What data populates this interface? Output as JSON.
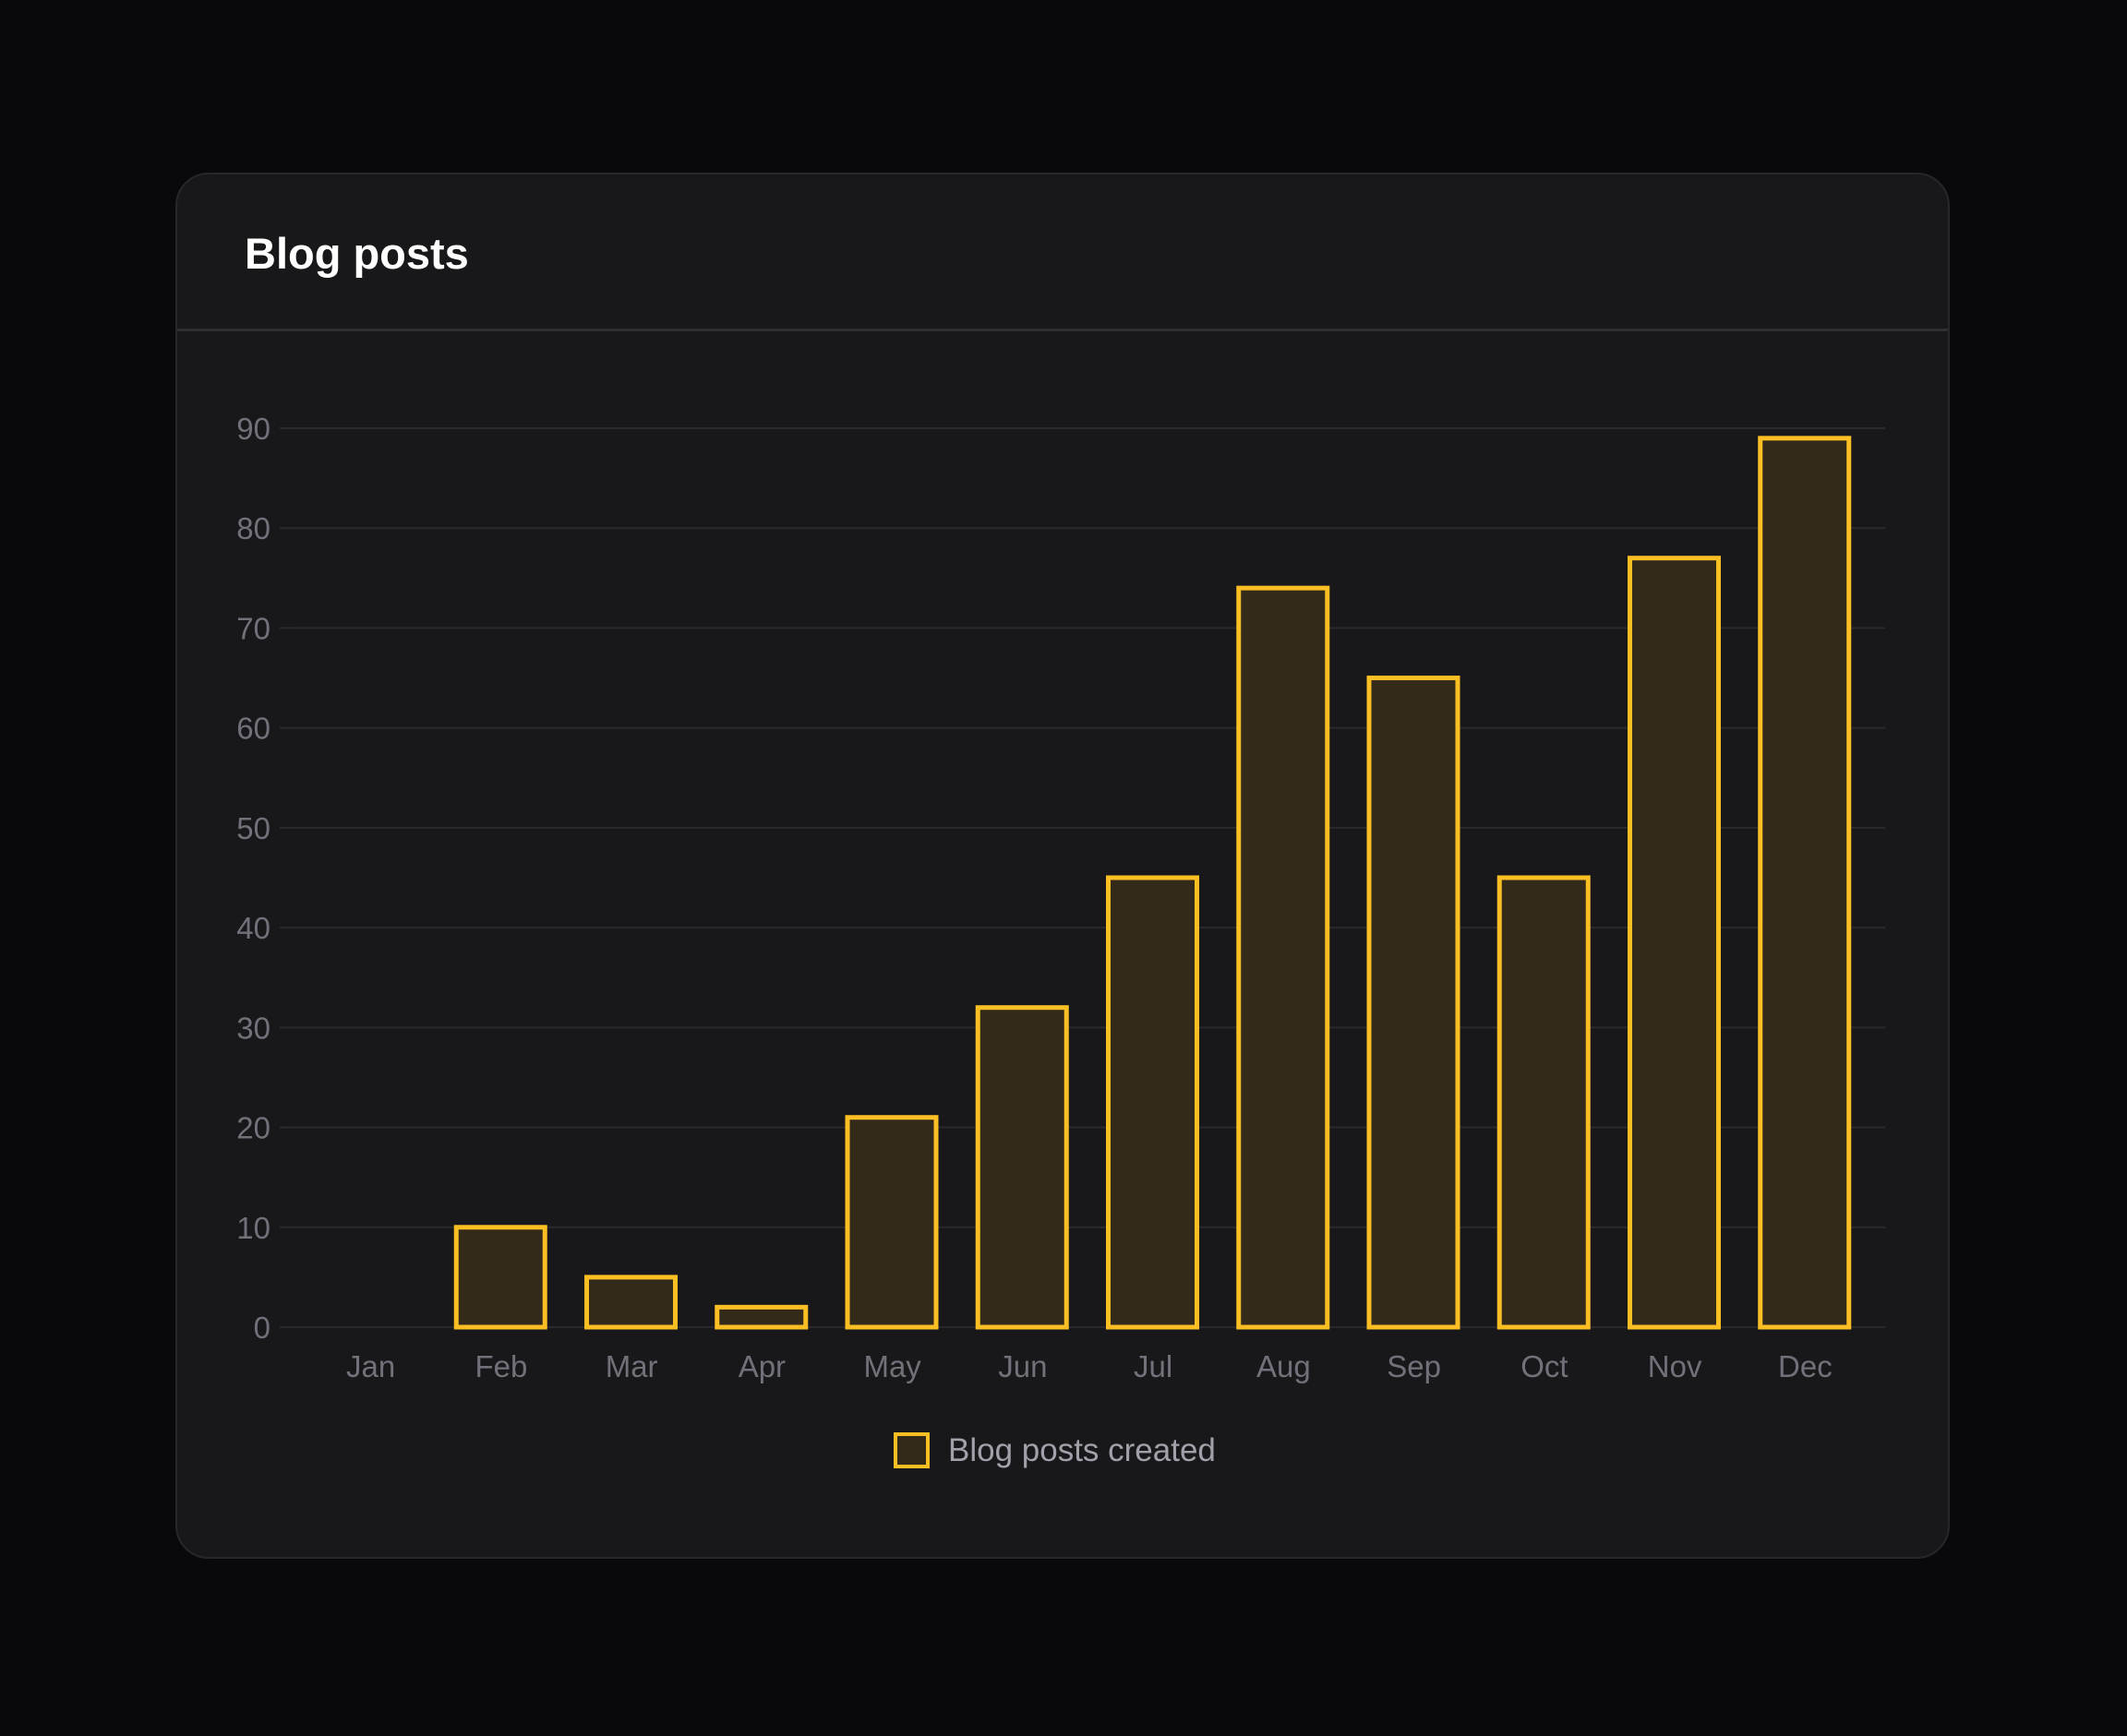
{
  "card": {
    "title": "Blog posts"
  },
  "colors": {
    "page_background": "#09090b",
    "card_background": "#18181b",
    "bar_stroke": "#fbbf24",
    "bar_fill": "#332a1a",
    "grid": "#2a2a2e",
    "tick_text": "#71717a",
    "legend_text": "#a1a1aa"
  },
  "chart_data": {
    "type": "bar",
    "title": "",
    "xlabel": "",
    "ylabel": "",
    "categories": [
      "Jan",
      "Feb",
      "Mar",
      "Apr",
      "May",
      "Jun",
      "Jul",
      "Aug",
      "Sep",
      "Oct",
      "Nov",
      "Dec"
    ],
    "series": [
      {
        "name": "Blog posts created",
        "values": [
          0,
          10,
          5,
          2,
          21,
          32,
          45,
          74,
          65,
          45,
          77,
          89
        ]
      }
    ],
    "ylim": [
      0,
      90
    ],
    "yticks": [
      0,
      10,
      20,
      30,
      40,
      50,
      60,
      70,
      80,
      90
    ],
    "grid": true,
    "legend": "bottom-center"
  }
}
